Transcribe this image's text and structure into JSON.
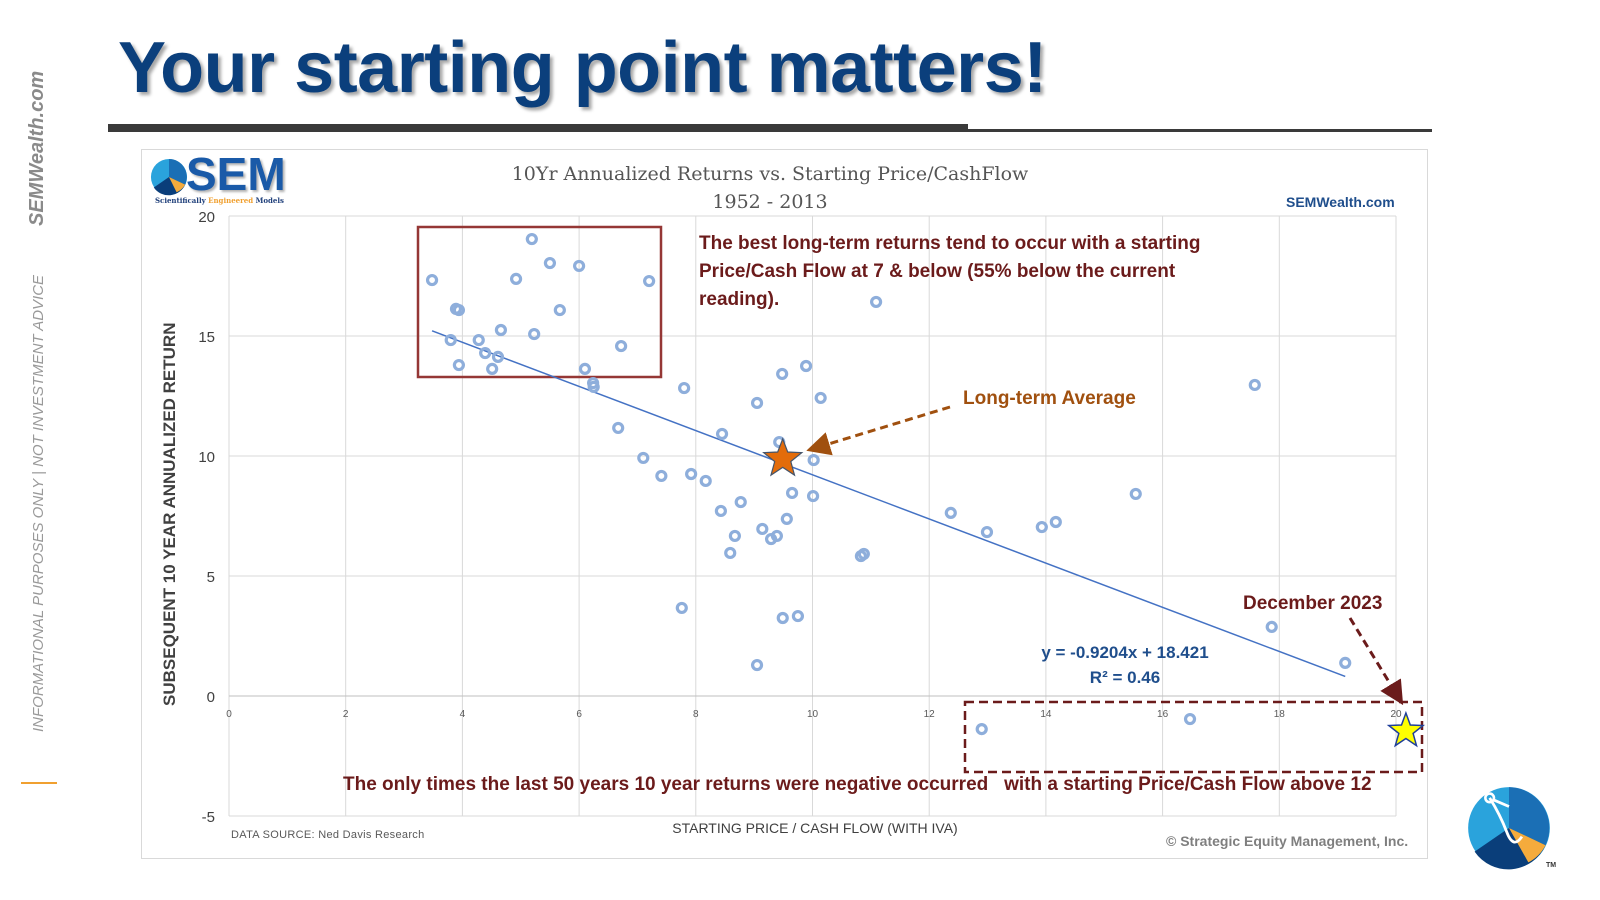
{
  "slide": {
    "title": "Your starting point matters!",
    "side_brand": "SEMWealth.com",
    "side_disclaimer": "INFORMATIONAL PURPOSES ONLY | NOT INVESTMENT ADVICE",
    "logo_text": "SEM",
    "logo_tagline_a": "Scientifically ",
    "logo_tagline_b": "Engineered",
    "logo_tagline_c": " Models",
    "trademark": "TM",
    "colors": {
      "title": "#0b3f7c",
      "points": "#8eaedb",
      "trend": "#4472c4",
      "annotation_red": "#6b1b1b",
      "annotation_orange": "#a0500f"
    }
  },
  "chart_data": {
    "type": "scatter",
    "title": "10Yr Annualized Returns vs. Starting Price/CashFlow",
    "subtitle": "1952 - 2013",
    "xlabel": "STARTING PRICE / CASH FLOW (WITH IVA)",
    "ylabel": "SUBSEQUENT 10 YEAR ANNUALIZED RETURN",
    "xlim": [
      0,
      20
    ],
    "ylim": [
      -5,
      20
    ],
    "xticks": [
      "0",
      "2",
      "4",
      "6",
      "8",
      "10",
      "12",
      "14",
      "16",
      "18",
      "20"
    ],
    "yticks": [
      "-5",
      "0",
      "5",
      "10",
      "15",
      "20"
    ],
    "grid": true,
    "brand_link": "SEMWealth.com",
    "data_source": "DATA SOURCE: Ned Davis Research",
    "copyright": "© Strategic Equity Management, Inc.",
    "points": [
      [
        3.48,
        17.33
      ],
      [
        3.89,
        16.13
      ],
      [
        3.94,
        16.08
      ],
      [
        3.8,
        14.83
      ],
      [
        3.94,
        13.79
      ],
      [
        4.28,
        14.83
      ],
      [
        4.39,
        14.29
      ],
      [
        4.61,
        14.13
      ],
      [
        4.51,
        13.63
      ],
      [
        4.66,
        15.25
      ],
      [
        4.92,
        17.38
      ],
      [
        5.19,
        19.04
      ],
      [
        5.23,
        15.08
      ],
      [
        5.5,
        18.04
      ],
      [
        5.67,
        16.08
      ],
      [
        6.0,
        17.92
      ],
      [
        6.1,
        13.63
      ],
      [
        6.24,
        13.04
      ],
      [
        6.25,
        12.88
      ],
      [
        6.72,
        14.58
      ],
      [
        7.2,
        17.29
      ],
      [
        6.67,
        11.17
      ],
      [
        7.1,
        9.92
      ],
      [
        7.41,
        9.17
      ],
      [
        7.8,
        12.83
      ],
      [
        7.92,
        9.25
      ],
      [
        8.17,
        8.96
      ],
      [
        8.45,
        10.92
      ],
      [
        8.43,
        7.71
      ],
      [
        8.77,
        8.08
      ],
      [
        8.67,
        6.67
      ],
      [
        8.59,
        5.96
      ],
      [
        9.05,
        12.21
      ],
      [
        9.14,
        6.96
      ],
      [
        9.29,
        6.54
      ],
      [
        9.39,
        6.67
      ],
      [
        9.43,
        10.58
      ],
      [
        9.48,
        13.42
      ],
      [
        9.56,
        7.38
      ],
      [
        9.65,
        8.46
      ],
      [
        9.89,
        13.75
      ],
      [
        10.02,
        9.83
      ],
      [
        10.01,
        8.33
      ],
      [
        10.14,
        12.42
      ],
      [
        11.09,
        16.42
      ],
      [
        10.83,
        5.83
      ],
      [
        10.88,
        5.92
      ],
      [
        7.76,
        3.67
      ],
      [
        9.49,
        3.25
      ],
      [
        9.75,
        3.33
      ],
      [
        9.05,
        1.29
      ],
      [
        12.37,
        7.63
      ],
      [
        12.99,
        6.83
      ],
      [
        13.93,
        7.04
      ],
      [
        14.17,
        7.25
      ],
      [
        15.54,
        8.42
      ],
      [
        17.58,
        12.96
      ],
      [
        17.87,
        2.88
      ],
      [
        19.13,
        1.38
      ],
      [
        12.9,
        -1.38
      ],
      [
        16.47,
        -0.96
      ]
    ],
    "trendline": {
      "slope": -0.9204,
      "intercept": 18.421,
      "x_range": [
        3.48,
        19.13
      ],
      "equation": "y = -0.9204x + 18.421",
      "r2": "R² = 0.46"
    },
    "highlights": {
      "long_term_average": {
        "x": 9.49,
        "y": 9.88,
        "label": "Long-term Average"
      },
      "december_2023": {
        "x": 20.17,
        "y": -1.46,
        "label": "December 2023"
      }
    },
    "annotations": {
      "best_returns": "The best long-term returns tend to occur with a starting Price/Cash Flow at 7 & below (55% below the current reading).",
      "negative_returns": "The only times the last 50 years 10 year returns were negative occurred   with a starting Price/Cash Flow above 12"
    }
  }
}
